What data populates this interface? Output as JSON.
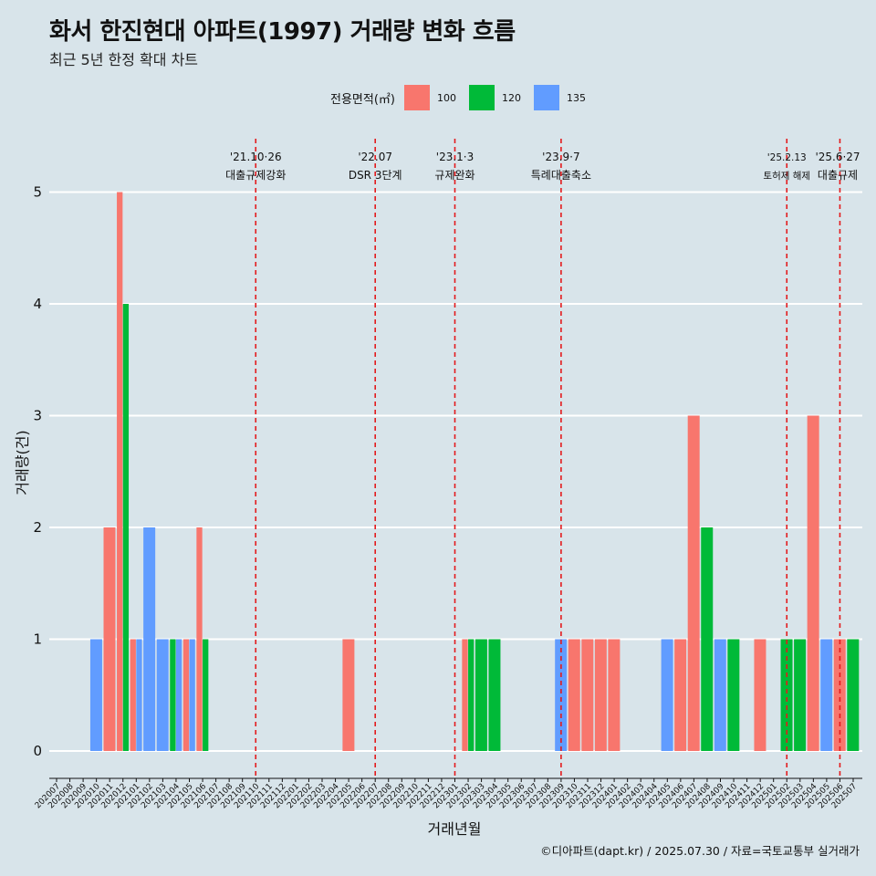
{
  "header": {
    "title": "화서 한진현대 아파트(1997) 거래량 변화 흐름",
    "subtitle": "최근 5년 한정 확대 차트"
  },
  "legend": {
    "title": "전용면적(㎡)",
    "items": [
      {
        "label": "100",
        "color": "#F8766D"
      },
      {
        "label": "120",
        "color": "#00BA38"
      },
      {
        "label": "135",
        "color": "#619CFF"
      }
    ]
  },
  "caption": "©디아파트(dapt.kr) / 2025.07.30 / 자료=국토교통부 실거래가",
  "chart_data": {
    "type": "bar",
    "xlabel": "거래년월",
    "ylabel": "거래량(건)",
    "ylim": [
      0,
      5
    ],
    "yticks": [
      0,
      1,
      2,
      3,
      4,
      5
    ],
    "grid": true,
    "categories": [
      "202007",
      "202008",
      "202009",
      "202010",
      "202011",
      "202012",
      "202101",
      "202102",
      "202103",
      "202104",
      "202105",
      "202106",
      "202107",
      "202108",
      "202109",
      "202110",
      "202111",
      "202112",
      "202201",
      "202202",
      "202203",
      "202204",
      "202205",
      "202206",
      "202207",
      "202208",
      "202209",
      "202210",
      "202211",
      "202212",
      "202301",
      "202302",
      "202303",
      "202304",
      "202305",
      "202306",
      "202307",
      "202308",
      "202309",
      "202310",
      "202311",
      "202312",
      "202401",
      "202402",
      "202403",
      "202404",
      "202405",
      "202406",
      "202407",
      "202408",
      "202409",
      "202410",
      "202411",
      "202412",
      "202501",
      "202502",
      "202503",
      "202504",
      "202505",
      "202506",
      "202507"
    ],
    "series": [
      {
        "name": "100",
        "color": "#F8766D",
        "values": [
          0,
          0,
          0,
          0,
          2,
          5,
          1,
          0,
          0,
          0,
          1,
          2,
          0,
          0,
          0,
          0,
          0,
          0,
          0,
          0,
          0,
          0,
          1,
          0,
          0,
          0,
          0,
          0,
          0,
          0,
          0,
          1,
          0,
          0,
          0,
          0,
          0,
          0,
          0,
          1,
          1,
          1,
          1,
          0,
          0,
          0,
          0,
          1,
          3,
          0,
          0,
          0,
          0,
          1,
          0,
          0,
          0,
          3,
          0,
          1,
          0
        ]
      },
      {
        "name": "120",
        "color": "#00BA38",
        "values": [
          0,
          0,
          0,
          0,
          0,
          4,
          0,
          0,
          0,
          1,
          0,
          1,
          0,
          0,
          0,
          0,
          0,
          0,
          0,
          0,
          0,
          0,
          0,
          0,
          0,
          0,
          0,
          0,
          0,
          0,
          0,
          1,
          1,
          1,
          0,
          0,
          0,
          0,
          0,
          0,
          0,
          0,
          0,
          0,
          0,
          0,
          0,
          0,
          0,
          2,
          0,
          1,
          0,
          0,
          0,
          1,
          1,
          0,
          0,
          0,
          1
        ]
      },
      {
        "name": "135",
        "color": "#619CFF",
        "values": [
          0,
          0,
          0,
          1,
          0,
          0,
          1,
          2,
          1,
          1,
          1,
          0,
          0,
          0,
          0,
          0,
          0,
          0,
          0,
          0,
          0,
          0,
          0,
          0,
          0,
          0,
          0,
          0,
          0,
          0,
          0,
          0,
          0,
          0,
          0,
          0,
          0,
          0,
          1,
          0,
          0,
          0,
          0,
          0,
          0,
          0,
          1,
          0,
          0,
          0,
          1,
          0,
          0,
          0,
          0,
          0,
          0,
          0,
          1,
          0,
          0
        ]
      }
    ],
    "annotations": [
      {
        "category": "202110",
        "date": "'21.10·26",
        "label": "대출규제강화"
      },
      {
        "category": "202207",
        "date": "'22.07",
        "label": "DSR 3단계"
      },
      {
        "category": "202301",
        "date": "'23.1·3",
        "label": "규제완화"
      },
      {
        "category": "202309",
        "date": "'23.9·7",
        "label": "특례대출축소"
      },
      {
        "category": "202502",
        "date": "'25.2.13",
        "label": "토허제 해제"
      },
      {
        "category": "202506",
        "date": "'25.6·27",
        "label": "대출규제"
      }
    ]
  }
}
